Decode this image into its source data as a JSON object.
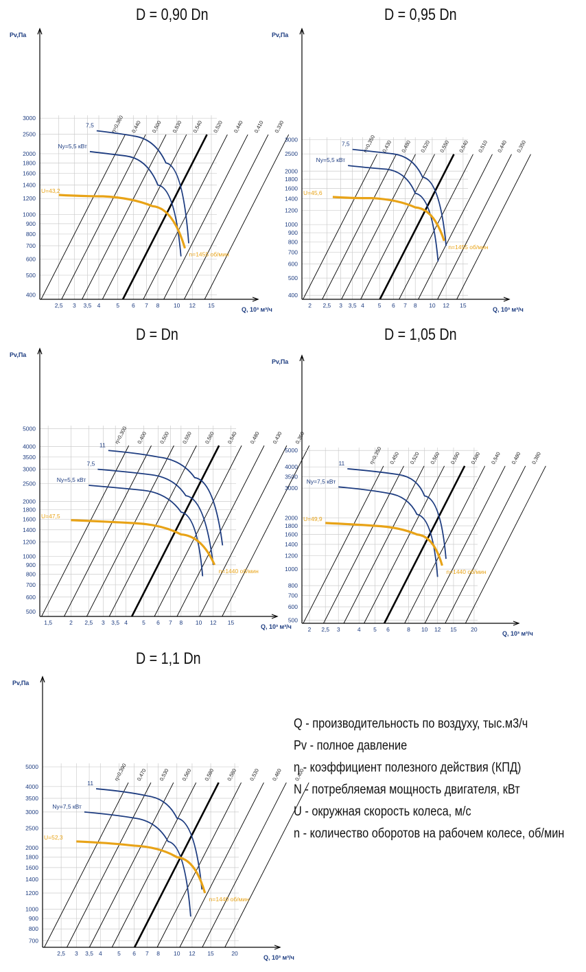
{
  "chart_data": [
    {
      "type": "line",
      "title": "D = 0,90 Dn",
      "ylabel": "Pv,Па",
      "xlabel": "Q, 10³ м³/ч",
      "x_ticks": [
        "2,5",
        "3",
        "3,5",
        "4",
        "5",
        "6",
        "7",
        "8",
        "10",
        "12",
        "15"
      ],
      "y_ticks": [
        "400",
        "500",
        "600",
        "700",
        "800",
        "900",
        "1000",
        "1200",
        "1400",
        "1600",
        "1800",
        "2000",
        "2500",
        "3000"
      ],
      "eta_lines": [
        "η=0,360",
        "0,440",
        "0,500",
        "0,530",
        "0,540",
        "0,520",
        "0,440",
        "0,410",
        "0,330"
      ],
      "best_eta_index": 4,
      "power_curves": [
        {
          "label": "Ny=5,5 кВт",
          "x": [
            3.6,
            5.5,
            8,
            10.5
          ],
          "y": [
            2050,
            1950,
            1400,
            620
          ]
        },
        {
          "label": "7,5",
          "x": [
            3.9,
            6,
            8.8,
            11.5
          ],
          "y": [
            2600,
            2450,
            1800,
            720
          ]
        }
      ],
      "speed_curve": {
        "u_label": "U=43,2",
        "n_label": "n=1455 об/мин",
        "x": [
          2.5,
          4.2,
          7.5,
          11
        ],
        "y": [
          1250,
          1230,
          1100,
          680
        ]
      }
    },
    {
      "type": "line",
      "title": "D = 0,95 Dn",
      "ylabel": "Pv,Па",
      "xlabel": "Q, 10³ м³/ч",
      "x_ticks": [
        "2",
        "2,5",
        "3",
        "3,5",
        "4",
        "5",
        "6",
        "7",
        "8",
        "10",
        "12",
        "15"
      ],
      "y_ticks": [
        "400",
        "500",
        "600",
        "700",
        "800",
        "900",
        "1000",
        "1200",
        "1400",
        "1600",
        "1800",
        "2000",
        "2500",
        "3000"
      ],
      "eta_lines": [
        "η=0,350",
        "0,430",
        "0,480",
        "0,520",
        "0,550",
        "0,540",
        "0,510",
        "0,440",
        "0,350"
      ],
      "best_eta_index": 4,
      "power_curves": [
        {
          "label": "Ny=5,5 кВт",
          "x": [
            3.3,
            5.5,
            8,
            10.8
          ],
          "y": [
            2150,
            2050,
            1500,
            620
          ]
        },
        {
          "label": "7,5",
          "x": [
            3.5,
            6,
            8.8,
            12
          ],
          "y": [
            2650,
            2500,
            1850,
            760
          ]
        }
      ],
      "speed_curve": {
        "u_label": "U=45,6",
        "n_label": "n=1455 об/мин",
        "x": [
          2.7,
          4.5,
          8,
          11.7
        ],
        "y": [
          1430,
          1410,
          1250,
          810
        ]
      }
    },
    {
      "type": "line",
      "title": "D = Dn",
      "ylabel": "Pv,Па",
      "xlabel": "Q, 10³ м³/ч",
      "x_ticks": [
        "1,5",
        "2",
        "2,5",
        "3",
        "3,5",
        "4",
        "5",
        "6",
        "7",
        "8",
        "10",
        "12",
        "15"
      ],
      "y_ticks": [
        "500",
        "600",
        "700",
        "800",
        "900",
        "1000",
        "1200",
        "1400",
        "1600",
        "1800",
        "2000",
        "2500",
        "3000",
        "3500",
        "4000",
        "5000"
      ],
      "eta_lines": [
        "η=0,300",
        "0,400",
        "0,500",
        "0,550",
        "0,560",
        "0,540",
        "0,480",
        "0,430",
        "0,360"
      ],
      "best_eta_index": 4,
      "power_curves": [
        {
          "label": "Ny=5,5 кВт",
          "x": [
            2.5,
            5,
            8,
            10.5
          ],
          "y": [
            2450,
            2300,
            1750,
            780
          ]
        },
        {
          "label": "7,5",
          "x": [
            2.8,
            5.5,
            8.5,
            12
          ],
          "y": [
            3000,
            2800,
            2150,
            900
          ]
        },
        {
          "label": "11",
          "x": [
            3.2,
            6,
            9.5,
            13.5
          ],
          "y": [
            3800,
            3500,
            2700,
            1150
          ]
        }
      ],
      "speed_curve": {
        "u_label": "U=47,5",
        "n_label": "n=1440 об/мин",
        "x": [
          2,
          4.5,
          8,
          12.2
        ],
        "y": [
          1580,
          1520,
          1320,
          900
        ]
      }
    },
    {
      "type": "line",
      "title": "D = 1,05 Dn",
      "ylabel": "Pv,Па",
      "xlabel": "Q, 10³ м³/ч",
      "x_ticks": [
        "2",
        "2,5",
        "3",
        "4",
        "5",
        "6",
        "8",
        "10",
        "12",
        "15",
        "20"
      ],
      "y_ticks": [
        "500",
        "600",
        "700",
        "800",
        "1000",
        "1200",
        "1400",
        "1600",
        "1800",
        "2000",
        "3000",
        "3500",
        "4000",
        "5000"
      ],
      "eta_lines": [
        "η=0,350",
        "0,450",
        "0,520",
        "0,560",
        "0,590",
        "0,580",
        "0,540",
        "0,480",
        "0,380"
      ],
      "best_eta_index": 4,
      "power_curves": [
        {
          "label": "Ny=7,5 кВт",
          "x": [
            3,
            6,
            9,
            12
          ],
          "y": [
            3050,
            2800,
            2100,
            900
          ]
        },
        {
          "label": "11",
          "x": [
            3.4,
            7,
            10,
            13.5
          ],
          "y": [
            3900,
            3600,
            2700,
            1150
          ]
        }
      ],
      "speed_curve": {
        "u_label": "U=49,9",
        "n_label": "n=1440 об/мин",
        "x": [
          2.5,
          5,
          9,
          12.8
        ],
        "y": [
          1870,
          1800,
          1600,
          1050
        ]
      }
    },
    {
      "type": "line",
      "title": "D = 1,1 Dn",
      "ylabel": "Pv,Па",
      "xlabel": "Q, 10³ м³/ч",
      "x_ticks": [
        "2,5",
        "3",
        "3,5",
        "4",
        "5",
        "6",
        "7",
        "8",
        "10",
        "12",
        "15",
        "20"
      ],
      "y_ticks": [
        "700",
        "800",
        "900",
        "1000",
        "1200",
        "1400",
        "1600",
        "1800",
        "2000",
        "2500",
        "3000",
        "3500",
        "4000",
        "5000"
      ],
      "eta_lines": [
        "η=0,390",
        "0,470",
        "0,530",
        "0,560",
        "0,580",
        "0,580",
        "0,530",
        "0,460",
        "0,400"
      ],
      "best_eta_index": 4,
      "power_curves": [
        {
          "label": "Ny=7,5 кВт",
          "x": [
            3.3,
            6,
            9,
            11.8
          ],
          "y": [
            3000,
            2800,
            2150,
            920
          ]
        },
        {
          "label": "11",
          "x": [
            3.8,
            7,
            10,
            13.5
          ],
          "y": [
            3900,
            3600,
            2800,
            1250
          ]
        }
      ],
      "speed_curve": {
        "u_label": "U=52,3",
        "n_label": "n=1440 об/мин",
        "x": [
          3,
          6,
          10,
          14
        ],
        "y": [
          2150,
          2050,
          1800,
          1200
        ]
      }
    }
  ],
  "legend": [
    "Q - производительность по воздуху, тыс.м3/ч",
    "Pv - полное давление",
    "η - коэффициент полезного действия (КПД)",
    "N - потребляемая мощность двигателя, кВт",
    "U - окружная скорость колеса, м/с",
    "n - количество оборотов на рабочем колесе, об/мин"
  ],
  "colors": {
    "axis": "#000000",
    "grid": "#cccccc",
    "power": "#1d3c80",
    "speed": "#e8a317",
    "eta": "#000000"
  }
}
